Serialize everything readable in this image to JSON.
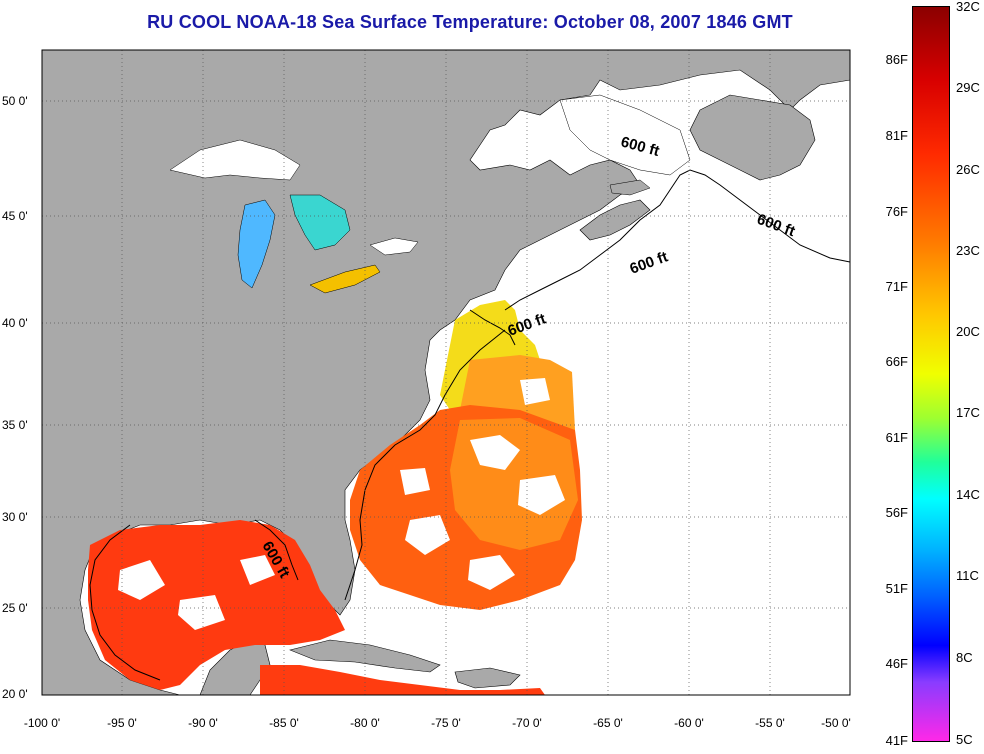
{
  "title": "RU COOL  NOAA-18  Sea Surface Temperature:  October 08, 2007 1846 GMT",
  "map": {
    "x_ticks": [
      "-100 0'",
      "-95 0'",
      "-90 0'",
      "-85 0'",
      "-80 0'",
      "-75 0'",
      "-70 0'",
      "-65 0'",
      "-60 0'",
      "-55 0'",
      "-50 0'"
    ],
    "y_ticks": [
      "50 0'",
      "45 0'",
      "40 0'",
      "35 0'",
      "30 0'",
      "25 0'",
      "20 0'"
    ],
    "contour_labels": [
      "600 ft",
      "600 ft",
      "600 ft",
      "600 ft",
      "600 ft"
    ],
    "land_color": "#a9a9a9",
    "cloud_color": "#ffffff"
  },
  "colorbar": {
    "fahrenheit_ticks": [
      "86F",
      "81F",
      "76F",
      "71F",
      "66F",
      "61F",
      "56F",
      "51F",
      "46F",
      "41F"
    ],
    "celsius_ticks": [
      "32C",
      "29C",
      "26C",
      "23C",
      "20C",
      "17C",
      "14C",
      "11C",
      "8C",
      "5C"
    ]
  }
}
